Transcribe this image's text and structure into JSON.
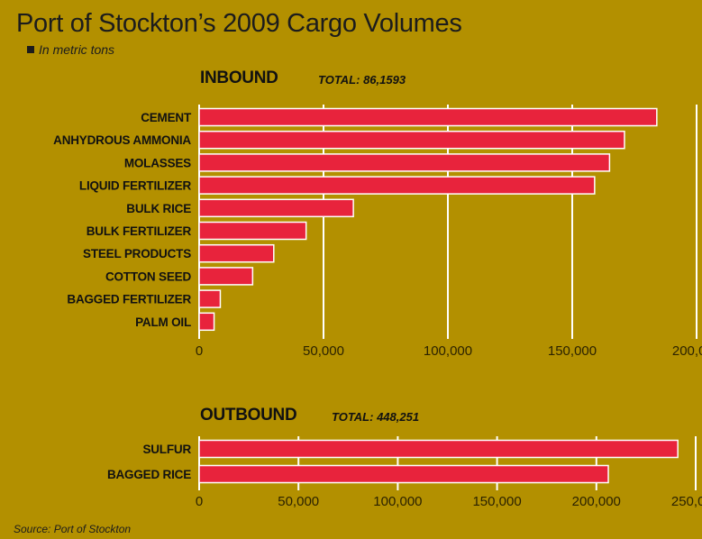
{
  "title": "Port of Stockton’s 2009 Cargo Volumes",
  "units_note": "In metric tons",
  "source": "Source: Port of Stockton",
  "colors": {
    "background": "#b39000",
    "bar": "#e8233c",
    "bar_border": "#ffffff",
    "grid": "#ffffff",
    "text": "#1a1a1a"
  },
  "chart_data": [
    {
      "type": "bar",
      "orientation": "horizontal",
      "title": "INBOUND",
      "subtitle": "TOTAL: 86,1593",
      "categories": [
        "CEMENT",
        "ANHYDROUS AMMONIA",
        "MOLASSES",
        "LIQUID FERTILIZER",
        "BULK RICE",
        "BULK FERTILIZER",
        "STEEL PRODUCTS",
        "COTTON SEED",
        "BAGGED FERTILIZER",
        "PALM OIL"
      ],
      "values": [
        184000,
        171000,
        165000,
        159000,
        62000,
        43000,
        30000,
        21500,
        8500,
        6000
      ],
      "xlim": [
        0,
        200000
      ],
      "ticks": [
        0,
        50000,
        100000,
        150000,
        200000
      ],
      "tick_labels": [
        "0",
        "50,000",
        "100,000",
        "150,000",
        "200,000"
      ],
      "grid": true
    },
    {
      "type": "bar",
      "orientation": "horizontal",
      "title": "OUTBOUND",
      "subtitle": "TOTAL: 448,251",
      "categories": [
        "SULFUR",
        "BAGGED RICE"
      ],
      "values": [
        241000,
        206000
      ],
      "xlim": [
        0,
        250000
      ],
      "ticks": [
        0,
        50000,
        100000,
        150000,
        200000,
        250000
      ],
      "tick_labels": [
        "0",
        "50,000",
        "100,000",
        "150,000",
        "200,000",
        "250,000"
      ],
      "grid": true
    }
  ]
}
